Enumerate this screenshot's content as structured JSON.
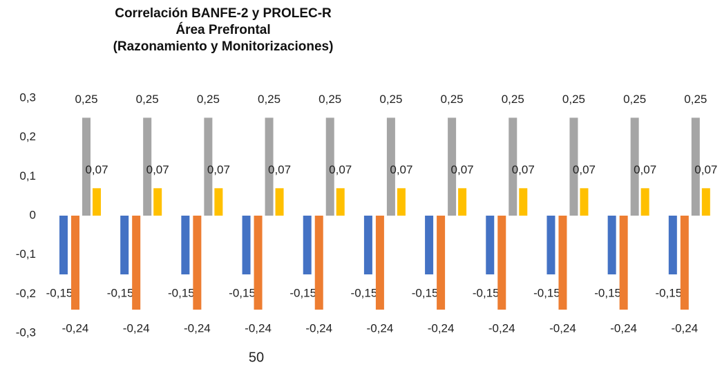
{
  "chart_data": {
    "type": "bar",
    "title": [
      "Correlación BANFE-2 y PROLEC-R",
      "Área Prefrontal",
      "(Razonamiento y Monitorizaciones)"
    ],
    "categories": [
      null,
      null,
      null,
      null,
      null,
      null,
      null,
      null,
      null,
      null,
      null
    ],
    "series": [
      {
        "name": null,
        "color": "#4472c4",
        "values": [
          -0.15,
          -0.15,
          -0.15,
          -0.15,
          -0.15,
          -0.15,
          -0.15,
          -0.15,
          -0.15,
          -0.15,
          -0.15
        ],
        "value_labels": [
          "-0,15",
          "-0,15",
          "-0,15",
          "-0,15",
          "-0,15",
          "-0,15",
          "-0,15",
          "-0,15",
          "-0,15",
          "-0,15",
          "-0,15"
        ]
      },
      {
        "name": null,
        "color": "#ed7d31",
        "values": [
          -0.24,
          -0.24,
          -0.24,
          -0.24,
          -0.24,
          -0.24,
          -0.24,
          -0.24,
          -0.24,
          -0.24,
          -0.24
        ],
        "value_labels": [
          "-0,24",
          "-0,24",
          "-0,24",
          "-0,24",
          "-0,24",
          "-0,24",
          "-0,24",
          "-0,24",
          "-0,24",
          "-0,24",
          "-0,24"
        ]
      },
      {
        "name": null,
        "color": "#a5a5a5",
        "values": [
          0.25,
          0.25,
          0.25,
          0.25,
          0.25,
          0.25,
          0.25,
          0.25,
          0.25,
          0.25,
          0.25
        ],
        "value_labels": [
          "0,25",
          "0,25",
          "0,25",
          "0,25",
          "0,25",
          "0,25",
          "0,25",
          "0,25",
          "0,25",
          "0,25",
          "0,25"
        ]
      },
      {
        "name": null,
        "color": "#ffc000",
        "values": [
          0.07,
          0.07,
          0.07,
          0.07,
          0.07,
          0.07,
          0.07,
          0.07,
          0.07,
          0.07,
          0.07
        ],
        "value_labels": [
          "0,07",
          "0,07",
          "0,07",
          "0,07",
          "0,07",
          "0,07",
          "0,07",
          "0,07",
          "0,07",
          "0,07",
          "0,07"
        ]
      }
    ],
    "ylim": [
      -0.3,
      0.3
    ],
    "yticks": [
      {
        "value": -0.3,
        "label": "-0,3"
      },
      {
        "value": -0.2,
        "label": "-0,2"
      },
      {
        "value": -0.1,
        "label": "-0,1"
      },
      0,
      {
        "value": 0.1,
        "label": "0,1"
      },
      {
        "value": 0.2,
        "label": "0,2"
      },
      {
        "value": 0.3,
        "label": "0,3"
      }
    ],
    "grid": false,
    "page_number": "50"
  }
}
